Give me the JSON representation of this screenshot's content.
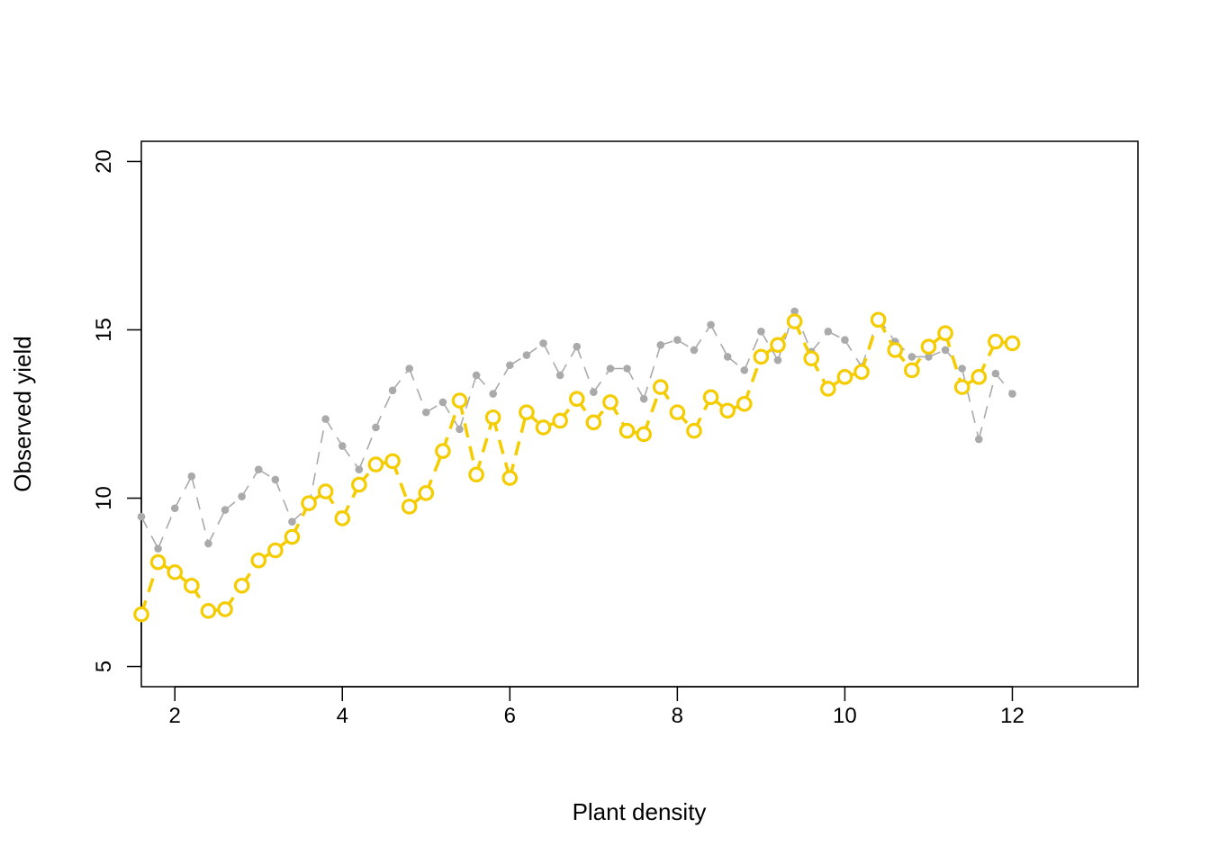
{
  "chart_data": {
    "type": "line",
    "title": "",
    "xlabel": "Plant density",
    "ylabel": "Observed yield",
    "xlim": [
      1.6,
      13.5
    ],
    "ylim": [
      4.4,
      20.6
    ],
    "xticks": [
      2,
      4,
      6,
      8,
      10,
      12
    ],
    "yticks": [
      5,
      10,
      15,
      20
    ],
    "grid": false,
    "legend": "none",
    "x": [
      1.6,
      1.8,
      2.0,
      2.2,
      2.4,
      2.6,
      2.8,
      3.0,
      3.2,
      3.4,
      3.6,
      3.8,
      4.0,
      4.2,
      4.4,
      4.6,
      4.8,
      5.0,
      5.2,
      5.4,
      5.6,
      5.8,
      6.0,
      6.2,
      6.4,
      6.6,
      6.8,
      7.0,
      7.2,
      7.4,
      7.6,
      7.8,
      8.0,
      8.2,
      8.4,
      8.6,
      8.8,
      9.0,
      9.2,
      9.4,
      9.6,
      9.8,
      10.0,
      10.2,
      10.4,
      10.6,
      10.8,
      11.0,
      11.2,
      11.4,
      11.6,
      11.8,
      12.0
    ],
    "series": [
      {
        "color": "#aaaaaa",
        "style": "grey dots joined by thin dashed line",
        "values": [
          9.45,
          8.5,
          9.7,
          10.65,
          8.65,
          9.65,
          10.05,
          10.85,
          10.55,
          9.3,
          9.75,
          12.35,
          11.55,
          10.85,
          12.1,
          13.2,
          13.85,
          12.55,
          12.85,
          12.05,
          13.65,
          13.1,
          13.95,
          14.25,
          14.6,
          13.65,
          14.5,
          13.15,
          13.85,
          13.85,
          12.95,
          14.55,
          14.7,
          14.4,
          15.15,
          14.2,
          13.8,
          14.95,
          14.1,
          15.55,
          14.35,
          14.95,
          14.7,
          13.9,
          15.35,
          14.65,
          14.2,
          14.2,
          14.4,
          13.85,
          11.75,
          13.7,
          13.1
        ]
      },
      {
        "color": "#f5cc00",
        "style": "yellow open circles joined by thick dashed line",
        "values": [
          6.55,
          8.1,
          7.8,
          7.4,
          6.65,
          6.7,
          7.4,
          8.15,
          8.45,
          8.85,
          9.85,
          10.2,
          9.4,
          10.4,
          11.0,
          11.1,
          9.75,
          10.15,
          11.4,
          12.9,
          10.7,
          12.4,
          10.6,
          12.55,
          12.1,
          12.3,
          12.95,
          12.25,
          12.85,
          12.0,
          11.9,
          13.3,
          12.55,
          12.0,
          13.0,
          12.6,
          12.8,
          14.2,
          14.55,
          15.25,
          14.15,
          13.25,
          13.6,
          13.75,
          15.3,
          14.4,
          13.8,
          14.5,
          14.9,
          13.3,
          13.6,
          14.65,
          14.6
        ]
      }
    ]
  }
}
